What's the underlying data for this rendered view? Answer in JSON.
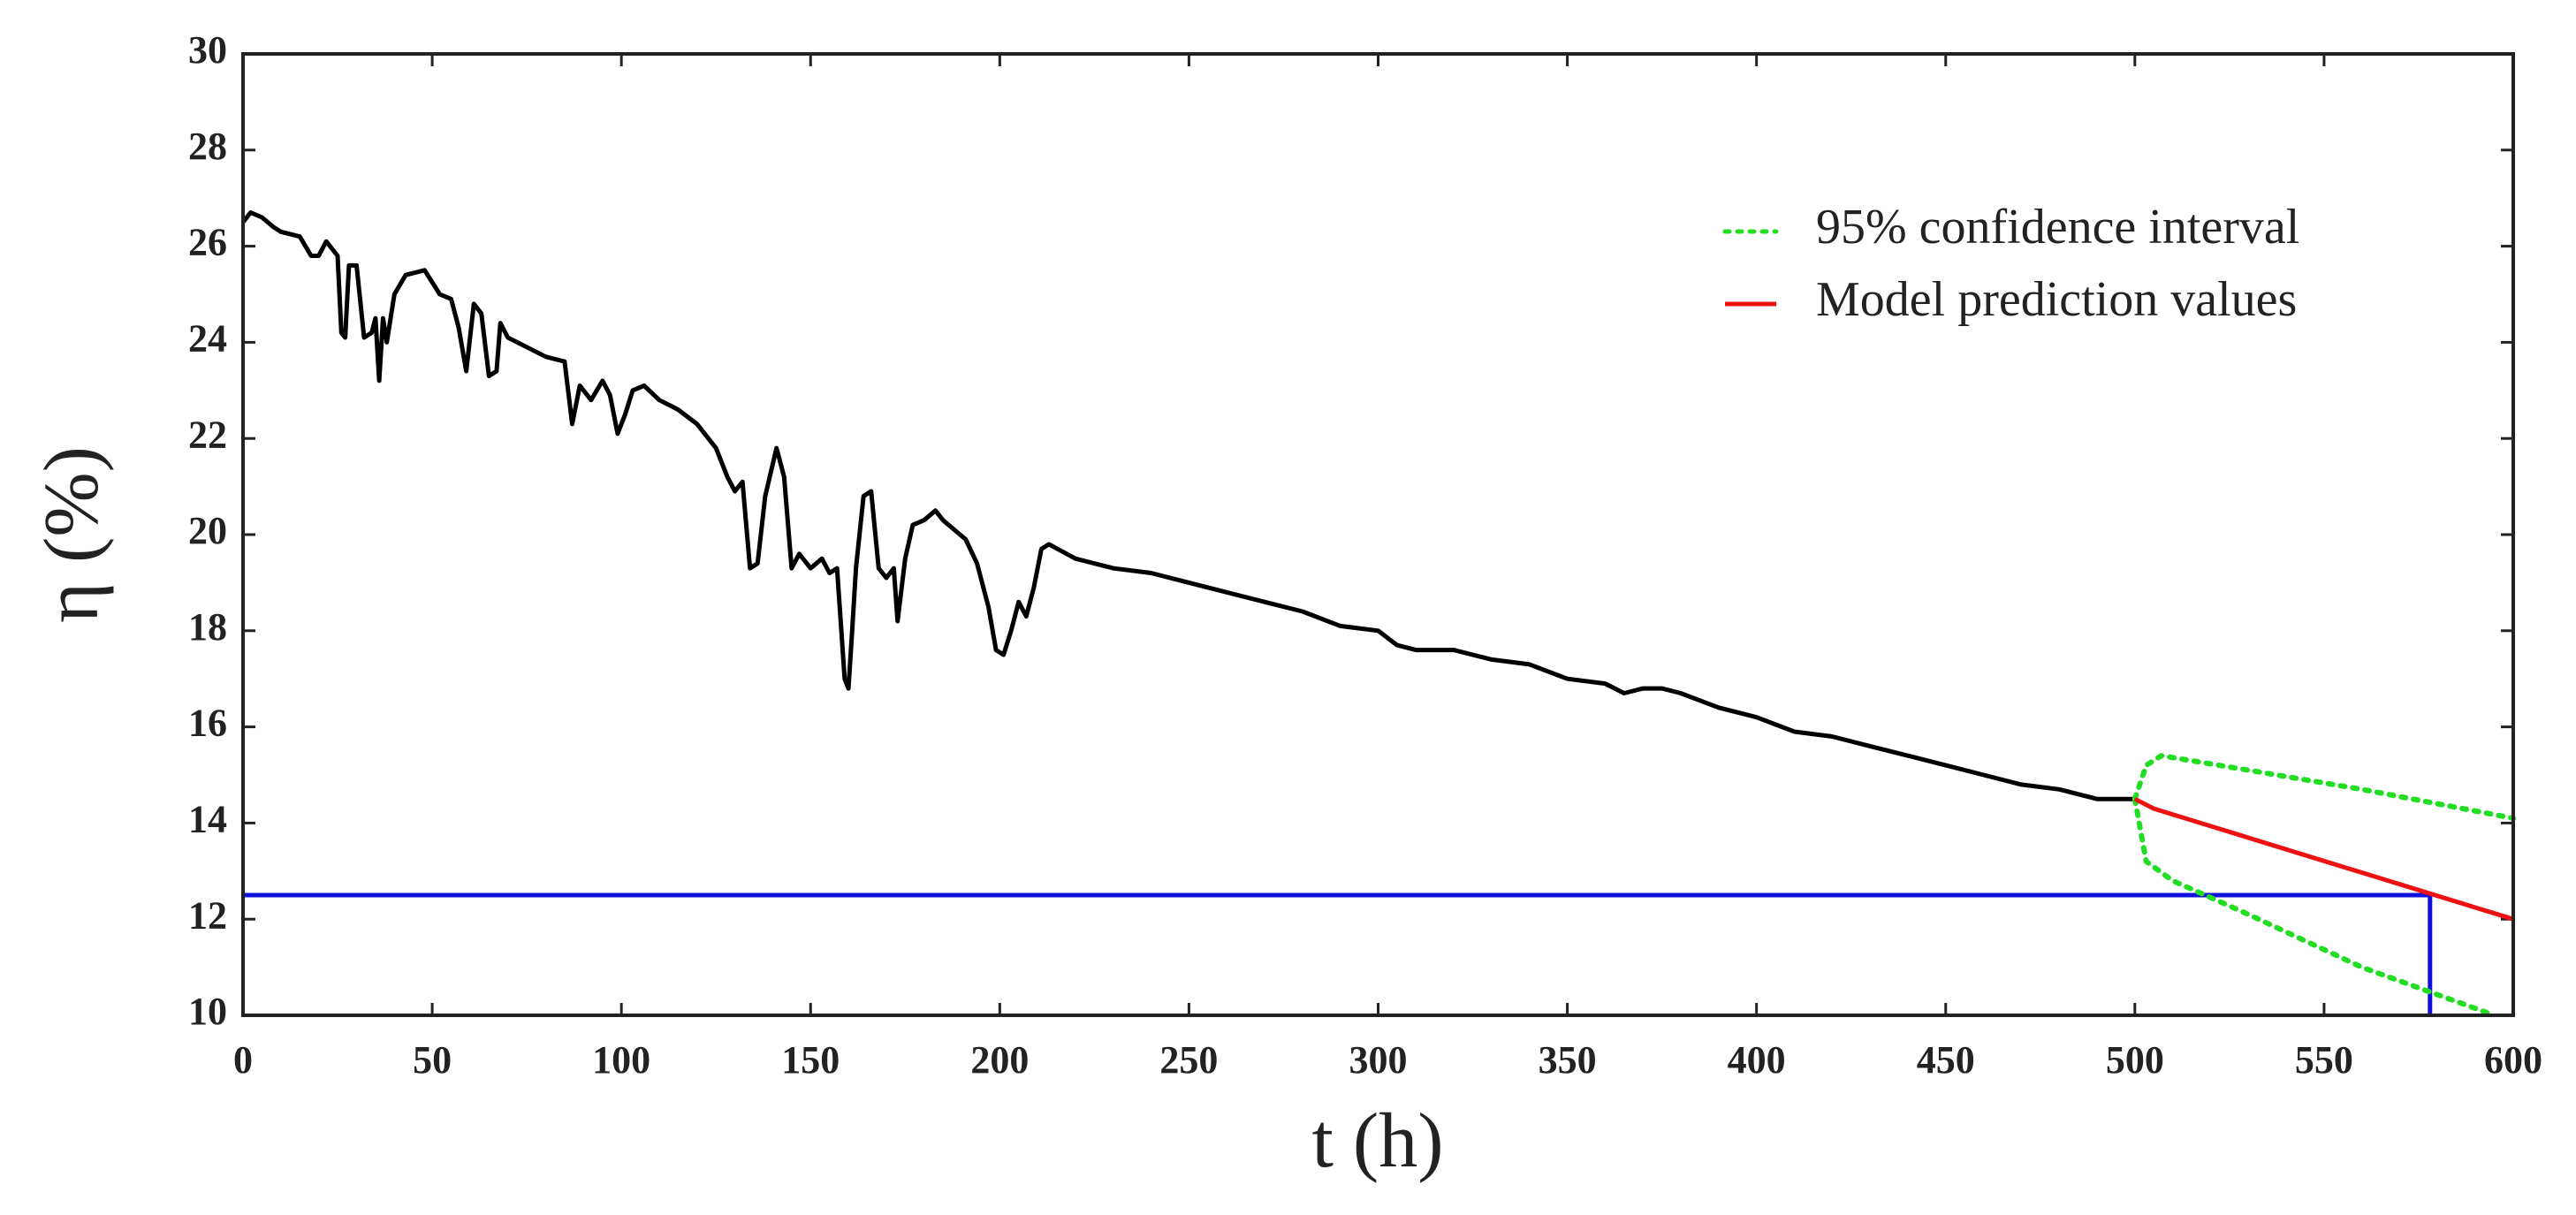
{
  "chart_data": {
    "type": "line",
    "x_label": "t (h)",
    "y_label": "η (%)",
    "xlim": [
      0,
      600
    ],
    "ylim": [
      10,
      30
    ],
    "xticks": [
      0,
      50,
      100,
      150,
      200,
      250,
      300,
      350,
      400,
      450,
      500,
      550,
      600
    ],
    "yticks": [
      10,
      12,
      14,
      16,
      18,
      20,
      22,
      24,
      26,
      28,
      30
    ],
    "grid": false,
    "legend": "upper right",
    "series": [
      {
        "color": "#000000",
        "style": "solid",
        "x": [
          0,
          2,
          5,
          8,
          10,
          15,
          18,
          20,
          22,
          25,
          26,
          27,
          28,
          30,
          32,
          34,
          35,
          36,
          37,
          38,
          40,
          43,
          48,
          52,
          55,
          57,
          59,
          61,
          63,
          65,
          67,
          68,
          70,
          75,
          80,
          85,
          87,
          89,
          92,
          95,
          97,
          99,
          101,
          103,
          106,
          110,
          115,
          120,
          125,
          128,
          130,
          132,
          134,
          136,
          138,
          141,
          143,
          145,
          147,
          150,
          153,
          155,
          157,
          159,
          160,
          161,
          162,
          164,
          166,
          168,
          170,
          172,
          173,
          175,
          177,
          180,
          183,
          185,
          188,
          191,
          194,
          197,
          199,
          201,
          203,
          205,
          207,
          209,
          211,
          213,
          220,
          230,
          240,
          250,
          260,
          270,
          280,
          290,
          300,
          305,
          310,
          320,
          330,
          340,
          350,
          360,
          365,
          370,
          375,
          380,
          390,
          400,
          410,
          420,
          430,
          440,
          450,
          460,
          470,
          480,
          490,
          500
        ],
        "values": [
          26.5,
          26.7,
          26.6,
          26.4,
          26.3,
          26.2,
          25.8,
          25.8,
          26.1,
          25.8,
          24.2,
          24.1,
          25.6,
          25.6,
          24.1,
          24.2,
          24.5,
          23.2,
          24.5,
          24.0,
          25.0,
          25.4,
          25.5,
          25.0,
          24.9,
          24.3,
          23.4,
          24.8,
          24.6,
          23.3,
          23.4,
          24.4,
          24.1,
          23.9,
          23.7,
          23.6,
          22.3,
          23.1,
          22.8,
          23.2,
          22.9,
          22.1,
          22.5,
          23.0,
          23.1,
          22.8,
          22.6,
          22.3,
          21.8,
          21.2,
          20.9,
          21.1,
          19.3,
          19.4,
          20.8,
          21.8,
          21.2,
          19.3,
          19.6,
          19.3,
          19.5,
          19.2,
          19.3,
          17.0,
          16.8,
          18.0,
          19.3,
          20.8,
          20.9,
          19.3,
          19.1,
          19.3,
          18.2,
          19.5,
          20.2,
          20.3,
          20.5,
          20.3,
          20.1,
          19.9,
          19.4,
          18.5,
          17.6,
          17.5,
          18.0,
          18.6,
          18.3,
          18.9,
          19.7,
          19.8,
          19.5,
          19.3,
          19.2,
          19.0,
          18.8,
          18.6,
          18.4,
          18.1,
          18.0,
          17.7,
          17.6,
          17.6,
          17.4,
          17.3,
          17.0,
          16.9,
          16.7,
          16.8,
          16.8,
          16.7,
          16.4,
          16.2,
          15.9,
          15.8,
          15.6,
          15.4,
          15.2,
          15.0,
          14.8,
          14.7,
          14.5,
          14.5
        ]
      },
      {
        "name": "95% confidence interval",
        "color": "#22dd22",
        "style": "dotted",
        "x": [
          500,
          503,
          507,
          530,
          560,
          600,
          null,
          500,
          503,
          510,
          530,
          560,
          595
        ],
        "values": [
          14.5,
          15.2,
          15.4,
          15.1,
          14.7,
          14.1,
          null,
          14.5,
          13.2,
          12.8,
          12.1,
          11.0,
          10.0
        ]
      },
      {
        "name": "Model prediction values",
        "color": "#ee1111",
        "style": "solid",
        "x": [
          500,
          505,
          600
        ],
        "values": [
          14.5,
          14.3,
          12.0
        ]
      }
    ],
    "threshold_line": {
      "color": "#1111dd",
      "x": [
        0,
        578,
        578
      ],
      "values": [
        12.5,
        12.5,
        10
      ]
    }
  }
}
